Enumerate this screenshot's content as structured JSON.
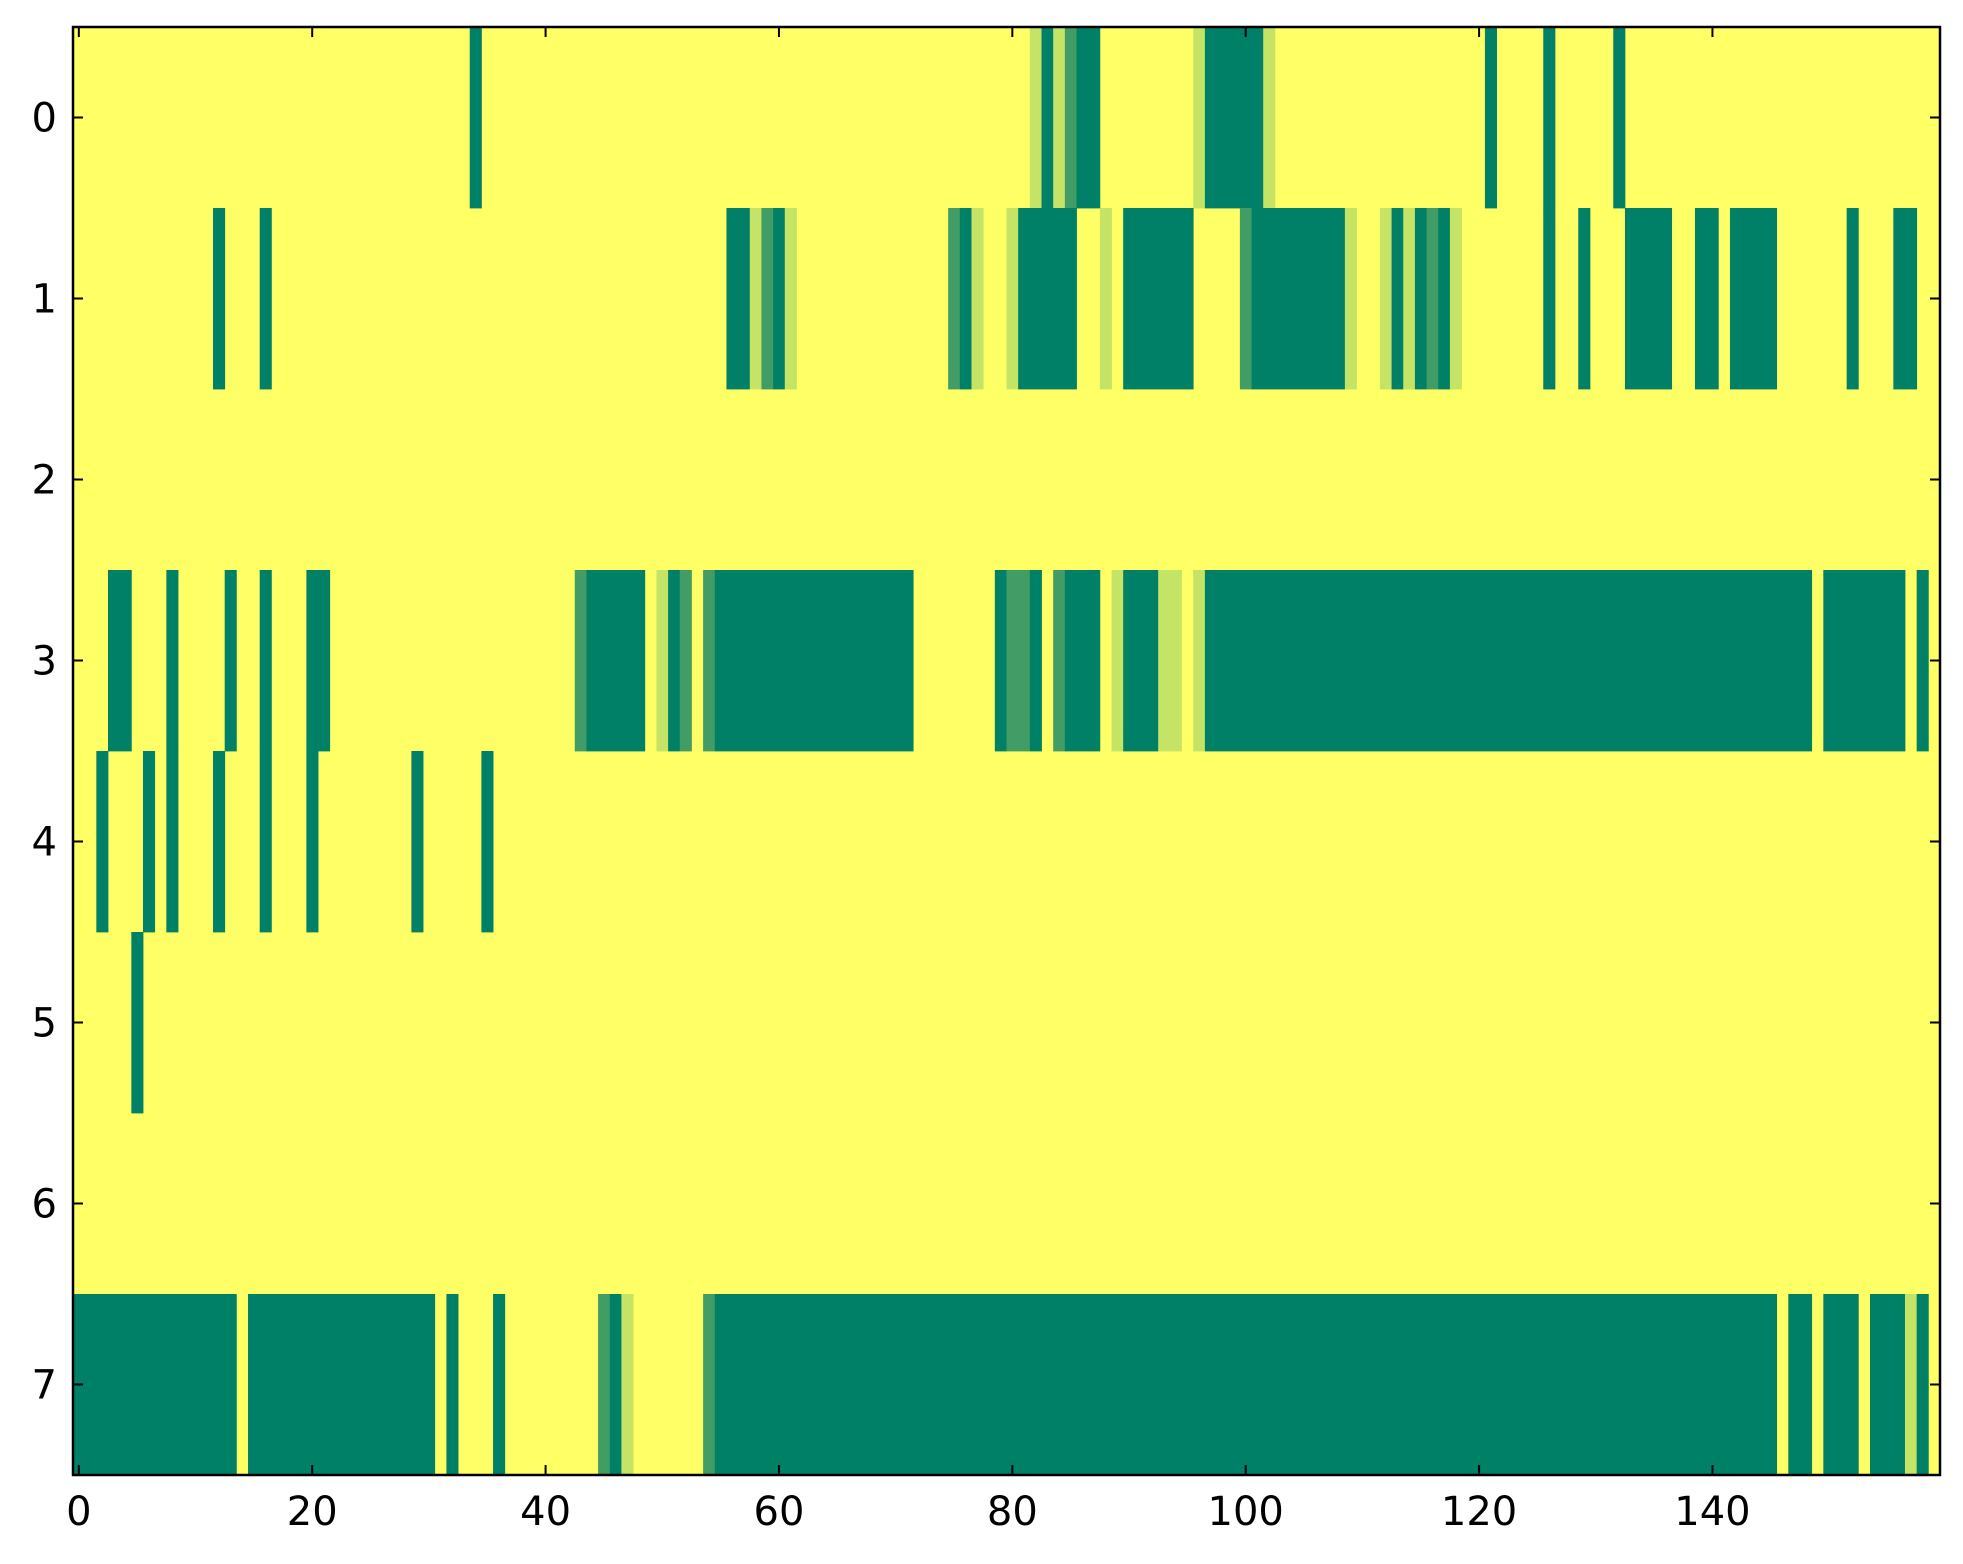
{
  "chart_data": {
    "type": "heatmap",
    "title": "",
    "xlabel": "",
    "ylabel": "",
    "xlim": [
      -0.5,
      159.5
    ],
    "ylim": [
      7.5,
      -0.5
    ],
    "x_ticks": [
      "0",
      "20",
      "40",
      "60",
      "80",
      "100",
      "120",
      "140"
    ],
    "y_ticks": [
      "0",
      "1",
      "2",
      "3",
      "4",
      "5",
      "6",
      "7"
    ],
    "ncols": 160,
    "colorscale": {
      "0": "#FFFF66",
      "0.25": "#C5E466",
      "0.5": "#429C66",
      "1": "#008066"
    },
    "background_value": 0,
    "rows": [
      {
        "row": 0,
        "segments": [
          [
            34,
            34,
            1
          ],
          [
            82,
            82,
            0.25
          ],
          [
            83,
            83,
            1
          ],
          [
            84,
            84,
            0.25
          ],
          [
            85,
            85,
            0.5
          ],
          [
            86,
            87,
            1
          ],
          [
            96,
            96,
            0.25
          ],
          [
            97,
            101,
            1
          ],
          [
            102,
            102,
            0.25
          ],
          [
            121,
            121,
            1
          ],
          [
            126,
            126,
            1
          ],
          [
            132,
            132,
            1
          ]
        ]
      },
      {
        "row": 1,
        "segments": [
          [
            12,
            12,
            1
          ],
          [
            16,
            16,
            1
          ],
          [
            56,
            57,
            1
          ],
          [
            58,
            58,
            0.25
          ],
          [
            59,
            59,
            0.5
          ],
          [
            60,
            60,
            1
          ],
          [
            61,
            61,
            0.25
          ],
          [
            75,
            75,
            0.5
          ],
          [
            76,
            76,
            1
          ],
          [
            77,
            77,
            0.25
          ],
          [
            80,
            80,
            0.25
          ],
          [
            81,
            85,
            1
          ],
          [
            88,
            88,
            0.25
          ],
          [
            90,
            95,
            1
          ],
          [
            100,
            100,
            0.5
          ],
          [
            101,
            108,
            1
          ],
          [
            109,
            109,
            0.25
          ],
          [
            112,
            112,
            0.25
          ],
          [
            113,
            113,
            1
          ],
          [
            114,
            114,
            0.25
          ],
          [
            115,
            115,
            1
          ],
          [
            116,
            116,
            0.5
          ],
          [
            117,
            117,
            1
          ],
          [
            118,
            118,
            0.25
          ],
          [
            126,
            126,
            1
          ],
          [
            129,
            129,
            1
          ],
          [
            133,
            136,
            1
          ],
          [
            139,
            140,
            1
          ],
          [
            142,
            145,
            1
          ],
          [
            152,
            152,
            1
          ],
          [
            156,
            157,
            1
          ]
        ]
      },
      {
        "row": 2,
        "segments": []
      },
      {
        "row": 3,
        "segments": [
          [
            3,
            4,
            1
          ],
          [
            8,
            8,
            1
          ],
          [
            13,
            13,
            1
          ],
          [
            16,
            16,
            1
          ],
          [
            20,
            21,
            1
          ],
          [
            43,
            43,
            0.5
          ],
          [
            44,
            48,
            1
          ],
          [
            50,
            50,
            0.25
          ],
          [
            51,
            51,
            1
          ],
          [
            52,
            52,
            0.5
          ],
          [
            54,
            54,
            0.5
          ],
          [
            55,
            71,
            1
          ],
          [
            79,
            79,
            1
          ],
          [
            80,
            81,
            0.5
          ],
          [
            82,
            82,
            1
          ],
          [
            84,
            84,
            0.5
          ],
          [
            85,
            87,
            1
          ],
          [
            89,
            89,
            0.25
          ],
          [
            90,
            92,
            1
          ],
          [
            93,
            93,
            0.25
          ],
          [
            94,
            94,
            0.25
          ],
          [
            96,
            96,
            0.25
          ],
          [
            97,
            148,
            1
          ],
          [
            150,
            156,
            1
          ],
          [
            158,
            158,
            1
          ]
        ]
      },
      {
        "row": 4,
        "segments": [
          [
            2,
            2,
            1
          ],
          [
            6,
            6,
            1
          ],
          [
            8,
            8,
            1
          ],
          [
            12,
            12,
            1
          ],
          [
            16,
            16,
            1
          ],
          [
            20,
            20,
            1
          ],
          [
            29,
            29,
            1
          ],
          [
            35,
            35,
            1
          ]
        ]
      },
      {
        "row": 5,
        "segments": [
          [
            5,
            5,
            1
          ]
        ]
      },
      {
        "row": 6,
        "segments": []
      },
      {
        "row": 7,
        "segments": [
          [
            -0.5,
            13.5,
            1
          ],
          [
            14.5,
            30.5,
            1
          ],
          [
            32,
            32,
            1
          ],
          [
            36,
            36,
            1
          ],
          [
            45,
            45,
            0.5
          ],
          [
            46,
            46,
            1
          ],
          [
            47,
            47,
            0.25
          ],
          [
            54,
            54,
            0.5
          ],
          [
            55,
            145,
            1
          ],
          [
            147,
            148,
            1
          ],
          [
            150,
            152,
            1
          ],
          [
            154,
            156,
            1
          ],
          [
            157,
            157,
            0.25
          ],
          [
            158,
            158,
            1
          ]
        ]
      }
    ]
  }
}
